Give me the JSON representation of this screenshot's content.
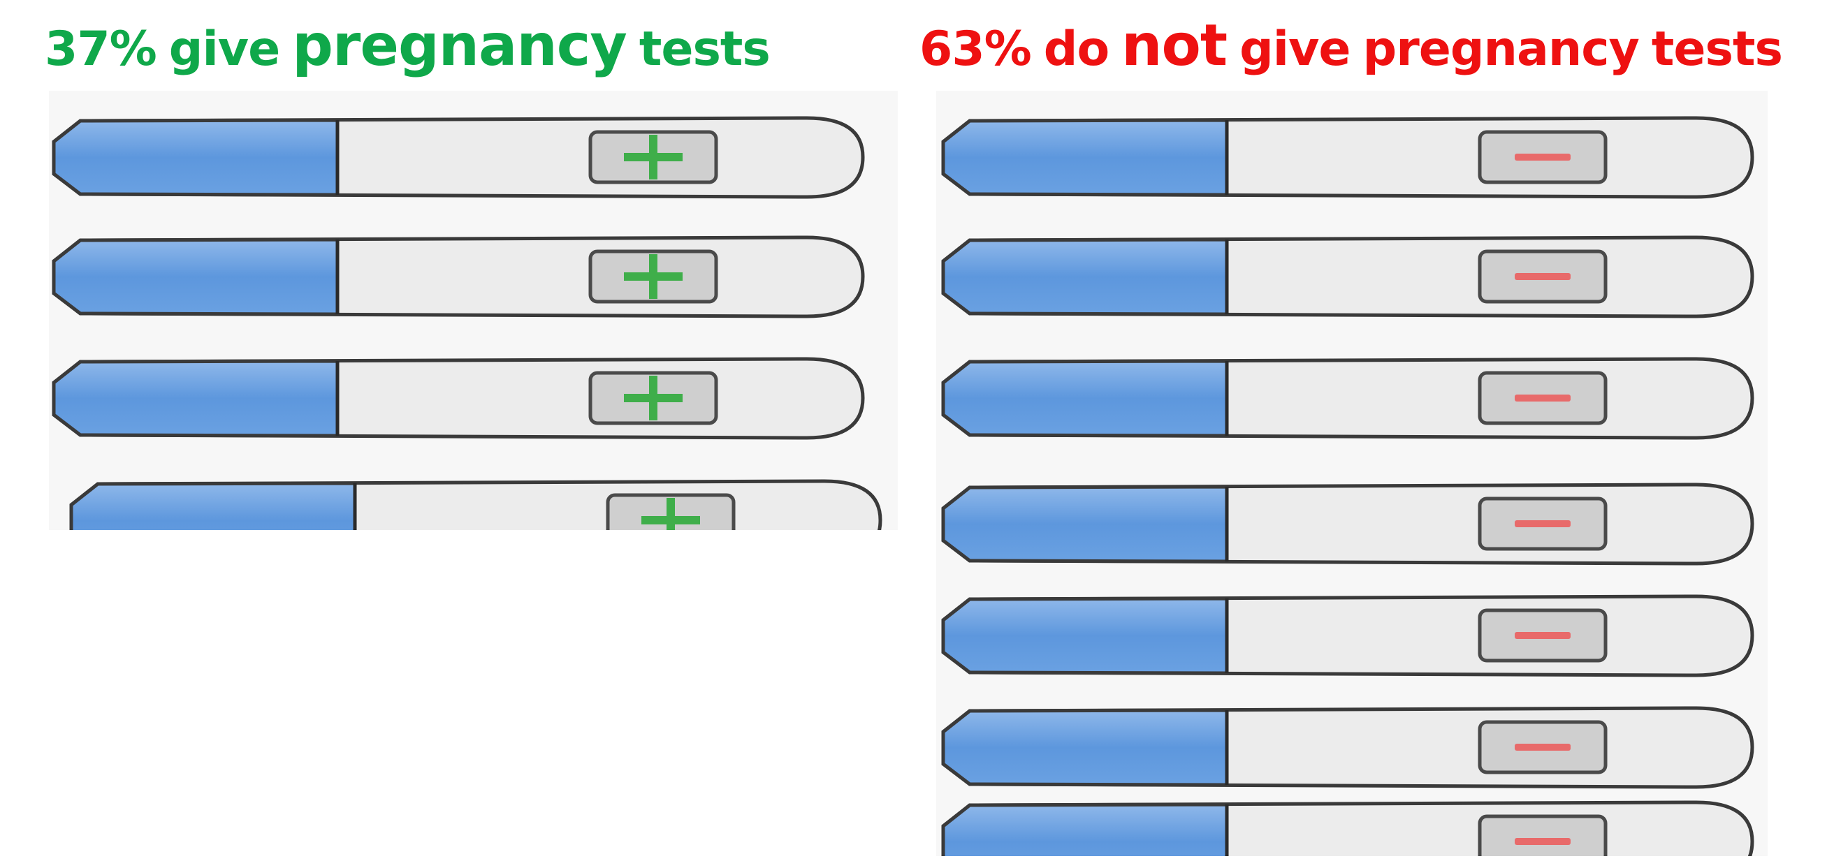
{
  "left": {
    "title_words": [
      "37%",
      "give",
      "pregnancy",
      "tests"
    ]
  },
  "right": {
    "title_words": [
      "63%",
      "do",
      "not",
      "give",
      "pregnancy",
      "tests"
    ]
  }
}
